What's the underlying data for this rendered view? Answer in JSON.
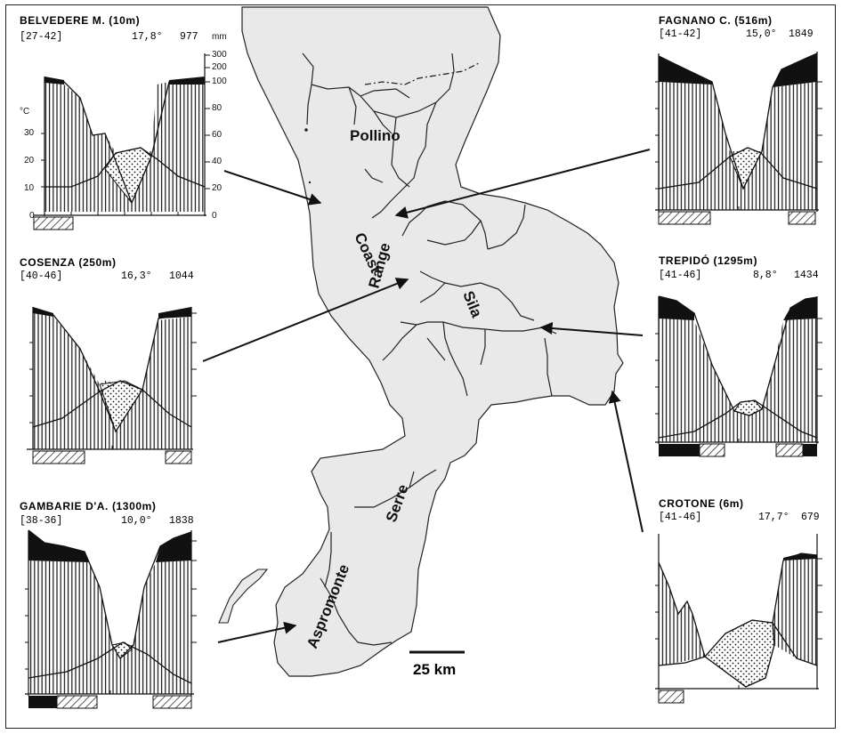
{
  "map": {
    "labels": {
      "pollino": "Pollino",
      "coast_range_1": "Coast",
      "coast_range_2": "Range",
      "sila": "Sila",
      "serre": "Serre",
      "aspromonte": "Aspromonte"
    },
    "scale_bar": "25 km"
  },
  "stations": [
    {
      "key": "belvedere",
      "name": "BELVEDERE M.",
      "elev": "(10m)",
      "years": "[27-42]",
      "temp": "17,8°",
      "precip": "977"
    },
    {
      "key": "cosenza",
      "name": "COSENZA",
      "elev": "(250m)",
      "years": "[40-46]",
      "temp": "16,3°",
      "precip": "1044"
    },
    {
      "key": "gambarie",
      "name": "GAMBARIE D'A.",
      "elev": "(1300m)",
      "years": "[38-36]",
      "temp": "10,0°",
      "precip": "1838"
    },
    {
      "key": "fagnano",
      "name": "FAGNANO C.",
      "elev": "(516m)",
      "years": "[41-42]",
      "temp": "15,0°",
      "precip": "1849"
    },
    {
      "key": "trepido",
      "name": "TREPIDÓ",
      "elev": "(1295m)",
      "years": "[41-46]",
      "temp": "8,8°",
      "precip": "1434"
    },
    {
      "key": "crotone",
      "name": "CROTONE",
      "elev": "(6m)",
      "years": "[41-46]",
      "temp": "17,7°",
      "precip": "679"
    }
  ],
  "axes": {
    "temp_unit": "°C",
    "temp_ticks": [
      "30",
      "20",
      "10",
      "0"
    ],
    "precip_unit": "mm",
    "precip_ticks": [
      "300",
      "200",
      "100",
      "80",
      "60",
      "40",
      "20",
      "0"
    ]
  }
}
